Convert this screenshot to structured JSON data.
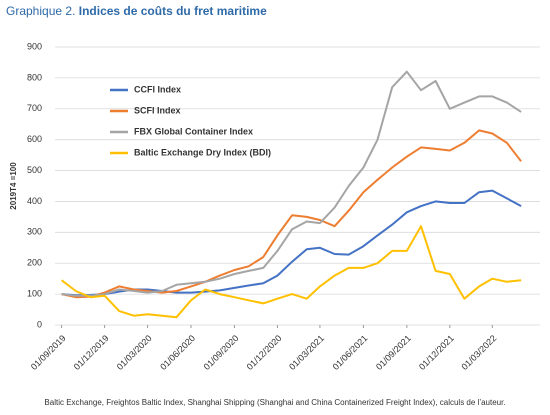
{
  "chart_data": {
    "type": "line",
    "title_label": "Graphique 2.",
    "title": "Indices de coûts du fret maritime",
    "y_label": "2019T4 =100",
    "source": "Baltic Exchange, Freightos Baltic Index, Shanghai Shipping (Shanghai and China Containerized Freight Index), calculs de l’auteur.",
    "x": [
      "2019-09-01",
      "2019-10-01",
      "2019-11-01",
      "2019-12-01",
      "2020-01-01",
      "2020-02-01",
      "2020-03-01",
      "2020-04-01",
      "2020-05-01",
      "2020-06-01",
      "2020-07-01",
      "2020-08-01",
      "2020-09-01",
      "2020-10-01",
      "2020-11-01",
      "2020-12-01",
      "2021-01-01",
      "2021-02-01",
      "2021-03-01",
      "2021-04-01",
      "2021-05-01",
      "2021-06-01",
      "2021-07-01",
      "2021-08-01",
      "2021-09-01",
      "2021-10-01",
      "2021-11-01",
      "2021-12-01",
      "2022-01-01",
      "2022-02-01",
      "2022-03-01",
      "2022-04-01",
      "2022-05-01"
    ],
    "xlim": [
      "2019-08-18",
      "2022-06-10"
    ],
    "xticks": [
      {
        "value": "2019-09-01",
        "label": "01/09/2019"
      },
      {
        "value": "2019-12-01",
        "label": "01/12/2019"
      },
      {
        "value": "2020-03-01",
        "label": "01/03/2020"
      },
      {
        "value": "2020-06-01",
        "label": "01/06/2020"
      },
      {
        "value": "2020-09-01",
        "label": "01/09/2020"
      },
      {
        "value": "2020-12-01",
        "label": "01/12/2020"
      },
      {
        "value": "2021-03-01",
        "label": "01/03/2021"
      },
      {
        "value": "2021-06-01",
        "label": "01/06/2021"
      },
      {
        "value": "2021-09-01",
        "label": "01/09/2021"
      },
      {
        "value": "2021-12-01",
        "label": "01/12/2021"
      },
      {
        "value": "2022-03-01",
        "label": "01/03/2022"
      }
    ],
    "ylim": [
      0,
      900
    ],
    "yticks": [
      0,
      100,
      200,
      300,
      400,
      500,
      600,
      700,
      800,
      900
    ],
    "grid": true,
    "legend": "top-left",
    "series": [
      {
        "name": "CCFI Index",
        "color": "#4472c4",
        "values": [
          100,
          96,
          97,
          100,
          108,
          115,
          115,
          110,
          105,
          105,
          108,
          112,
          120,
          128,
          135,
          160,
          205,
          245,
          250,
          230,
          228,
          255,
          290,
          325,
          365,
          385,
          400,
          395,
          395,
          430,
          435,
          410,
          385
        ]
      },
      {
        "name": "SCFI Index",
        "color": "#ed7d31",
        "values": [
          100,
          90,
          92,
          105,
          125,
          115,
          110,
          105,
          110,
          125,
          140,
          160,
          178,
          190,
          220,
          290,
          355,
          350,
          340,
          320,
          370,
          430,
          470,
          510,
          545,
          575,
          570,
          565,
          590,
          630,
          620,
          590,
          530
        ]
      },
      {
        "name": "FBX Global Container Index",
        "color": "#a5a5a5",
        "values": [
          100,
          95,
          95,
          100,
          115,
          110,
          105,
          110,
          130,
          135,
          140,
          150,
          165,
          175,
          185,
          240,
          310,
          335,
          330,
          380,
          450,
          510,
          600,
          770,
          820,
          760,
          790,
          700,
          720,
          740,
          740,
          720,
          690
        ]
      },
      {
        "name": "Baltic Exchange Dry Index (BDI)",
        "color": "#ffc000",
        "values": [
          145,
          110,
          90,
          95,
          45,
          30,
          35,
          30,
          25,
          80,
          115,
          100,
          90,
          80,
          70,
          85,
          100,
          85,
          125,
          160,
          185,
          185,
          200,
          240,
          240,
          320,
          175,
          165,
          85,
          125,
          150,
          140,
          145
        ]
      }
    ]
  }
}
